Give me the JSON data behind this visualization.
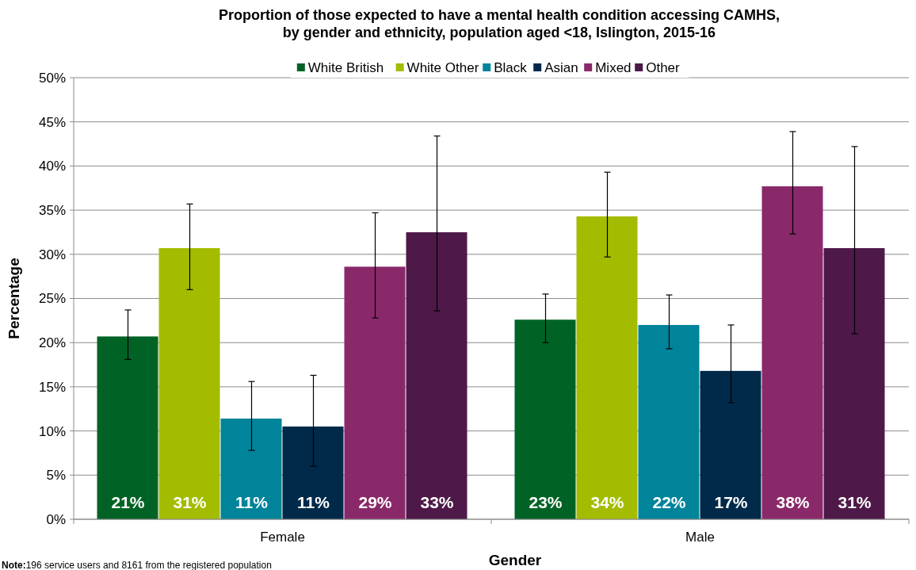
{
  "chart_data": {
    "type": "bar",
    "title": "Proportion of those expected to have a mental health condition accessing CAMHS, by gender and ethnicity,  population aged <18, Islington, 2015-16",
    "xlabel": "Gender",
    "ylabel": "Percentage",
    "categories": [
      "Female",
      "Male"
    ],
    "series": [
      {
        "name": "White British",
        "color": "#006325",
        "values": [
          20.7,
          22.6
        ],
        "errors": [
          [
            18.1,
            23.7
          ],
          [
            20.0,
            25.5
          ]
        ],
        "value_labels": [
          "21%",
          "23%"
        ]
      },
      {
        "name": "White Other",
        "color": "#a4bc00",
        "values": [
          30.7,
          34.3
        ],
        "errors": [
          [
            26.0,
            35.7
          ],
          [
            29.7,
            39.3
          ]
        ],
        "value_labels": [
          "31%",
          "34%"
        ]
      },
      {
        "name": "Black",
        "color": "#00849a",
        "values": [
          11.4,
          22.0
        ],
        "errors": [
          [
            7.8,
            15.6
          ],
          [
            19.3,
            25.4
          ]
        ],
        "value_labels": [
          "11%",
          "22%"
        ]
      },
      {
        "name": "Asian",
        "color": "#012a4a",
        "values": [
          10.5,
          16.8
        ],
        "errors": [
          [
            6.0,
            16.3
          ],
          [
            13.2,
            22.0
          ]
        ],
        "value_labels": [
          "11%",
          "17%"
        ]
      },
      {
        "name": "Mixed",
        "color": "#8a296a",
        "values": [
          28.6,
          37.7
        ],
        "errors": [
          [
            22.8,
            34.7
          ],
          [
            32.3,
            43.9
          ]
        ],
        "value_labels": [
          "29%",
          "38%"
        ]
      },
      {
        "name": "Other",
        "color": "#4e1948",
        "values": [
          32.5,
          30.7
        ],
        "errors": [
          [
            23.6,
            43.4
          ],
          [
            21.0,
            42.2
          ]
        ],
        "value_labels": [
          "33%",
          "31%"
        ]
      }
    ],
    "ylim": [
      0,
      50
    ],
    "yticks": [
      {
        "value": 0,
        "label": "0%"
      },
      {
        "value": 5,
        "label": "5%"
      },
      {
        "value": 10,
        "label": "10%"
      },
      {
        "value": 15,
        "label": "15%"
      },
      {
        "value": 20,
        "label": "20%"
      },
      {
        "value": 25,
        "label": "25%"
      },
      {
        "value": 30,
        "label": "30%"
      },
      {
        "value": 35,
        "label": "35%"
      },
      {
        "value": 40,
        "label": "40%"
      },
      {
        "value": 45,
        "label": "45%"
      },
      {
        "value": 50,
        "label": "50%"
      }
    ],
    "grid": "y",
    "legend": "top",
    "annotations": [
      "Note:196 service users and 8161 from the registered population"
    ]
  }
}
